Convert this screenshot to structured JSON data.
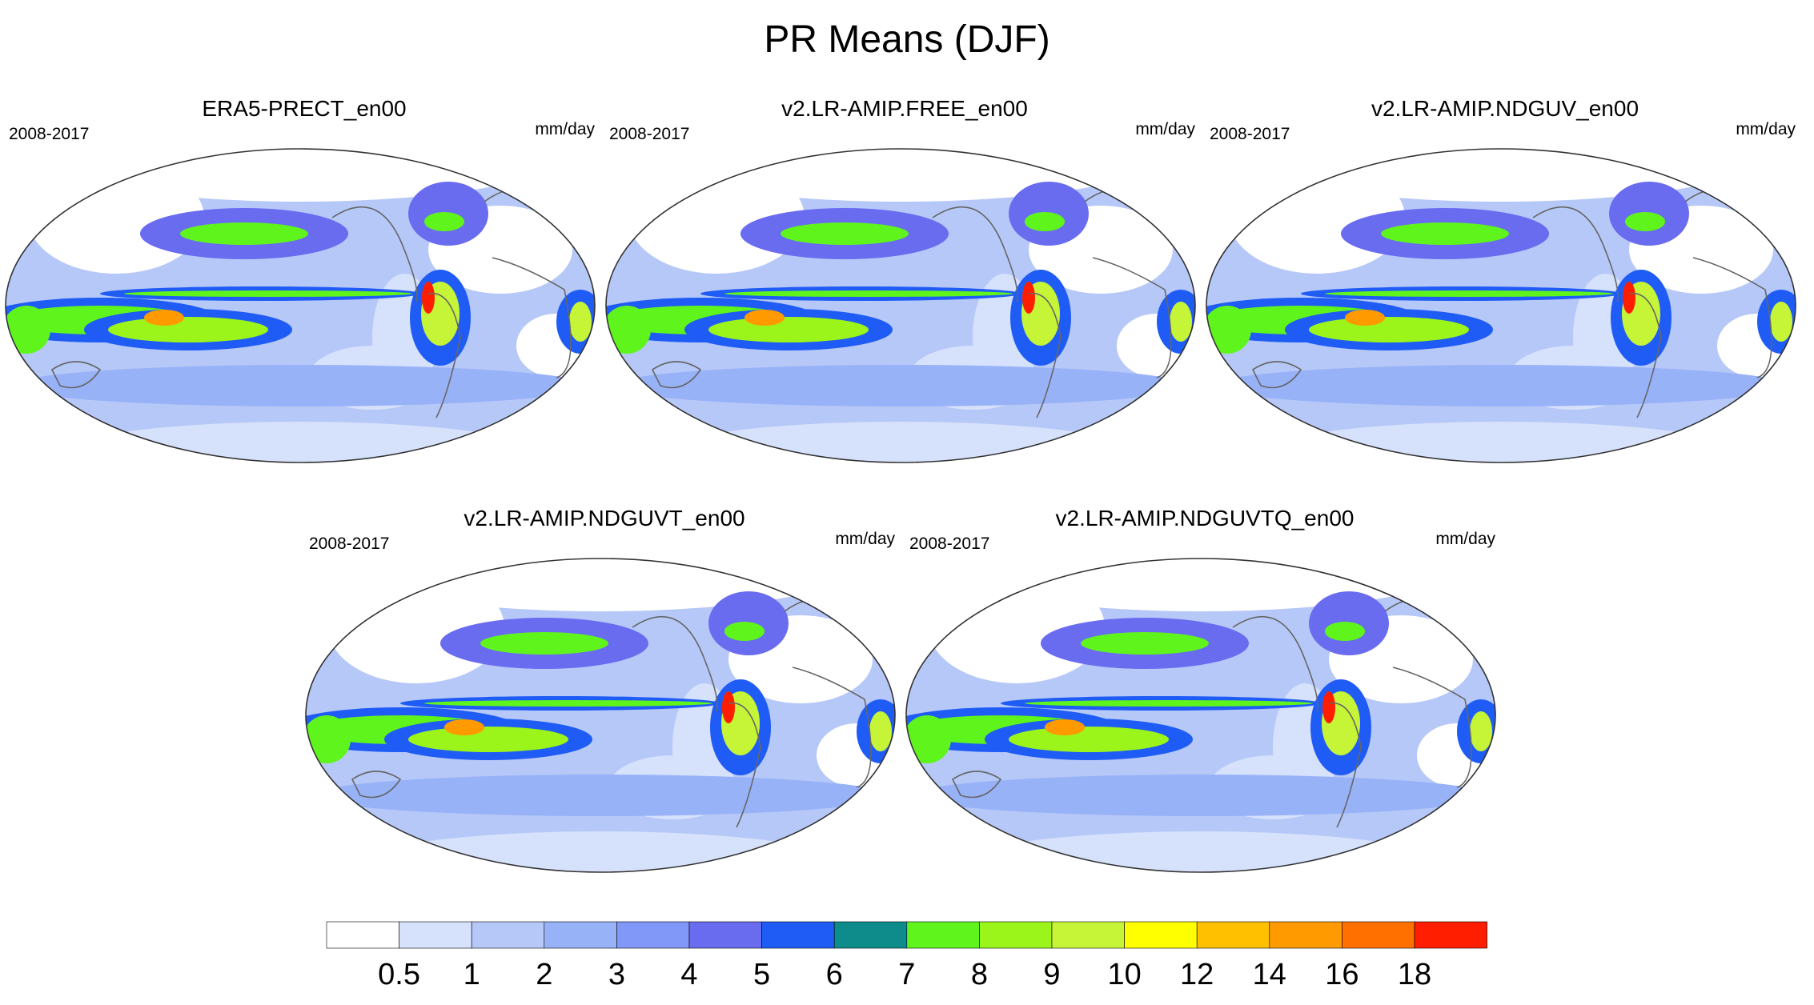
{
  "page_title": "PR Means (DJF)",
  "chart_data": {
    "type": "contour-map",
    "title": "PR Means (DJF)",
    "panels": [
      {
        "title": "ERA5-PRECT_en00",
        "period": "2008-2017",
        "units": "mm/day"
      },
      {
        "title": "v2.LR-AMIP.FREE_en00",
        "period": "2008-2017",
        "units": "mm/day"
      },
      {
        "title": "v2.LR-AMIP.NDGUV_en00",
        "period": "2008-2017",
        "units": "mm/day"
      },
      {
        "title": "v2.LR-AMIP.NDGUVT_en00",
        "period": "2008-2017",
        "units": "mm/day"
      },
      {
        "title": "v2.LR-AMIP.NDGUVTQ_en00",
        "period": "2008-2017",
        "units": "mm/day"
      }
    ],
    "colorbar": {
      "levels": [
        "0.5",
        "1",
        "2",
        "3",
        "4",
        "5",
        "6",
        "7",
        "8",
        "9",
        "10",
        "12",
        "14",
        "16",
        "18"
      ],
      "colors": [
        "#ffffff",
        "#d6e1fb",
        "#b6c8f8",
        "#98b2f8",
        "#8298f8",
        "#6a6cf0",
        "#1f5cf6",
        "#0e8c8c",
        "#5ff51c",
        "#9cf51a",
        "#c6f538",
        "#ffff00",
        "#ffc000",
        "#ff9a00",
        "#ff7000",
        "#ff1e00"
      ]
    }
  }
}
